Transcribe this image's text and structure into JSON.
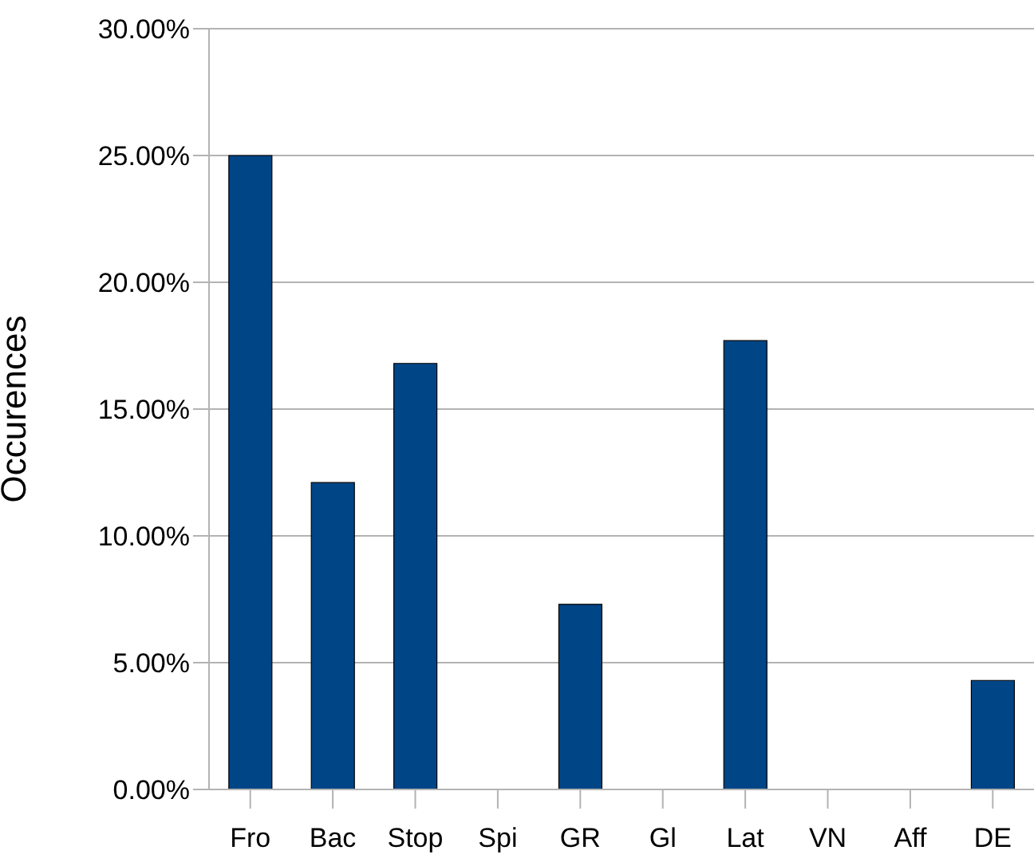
{
  "chart_data": {
    "type": "bar",
    "ylabel": "Occurences",
    "categories": [
      "Fro",
      "Bac",
      "Stop",
      "Spi",
      "GR",
      "Gl",
      "Lat",
      "VN",
      "Aff",
      "DE"
    ],
    "values": [
      25,
      12.1,
      16.8,
      0,
      7.3,
      0,
      17.7,
      0,
      0,
      4.3
    ],
    "color": "#004586",
    "ylim": [
      0,
      30
    ],
    "yticks": [
      {
        "value": 0,
        "label": "0.00%"
      },
      {
        "value": 5,
        "label": "5.00%"
      },
      {
        "value": 10,
        "label": "10.00%"
      },
      {
        "value": 15,
        "label": "15.00%"
      },
      {
        "value": 20,
        "label": "20.00%"
      },
      {
        "value": 25,
        "label": "25.00%"
      },
      {
        "value": 30,
        "label": "30.00%"
      }
    ],
    "grid": "y",
    "legend": false
  }
}
